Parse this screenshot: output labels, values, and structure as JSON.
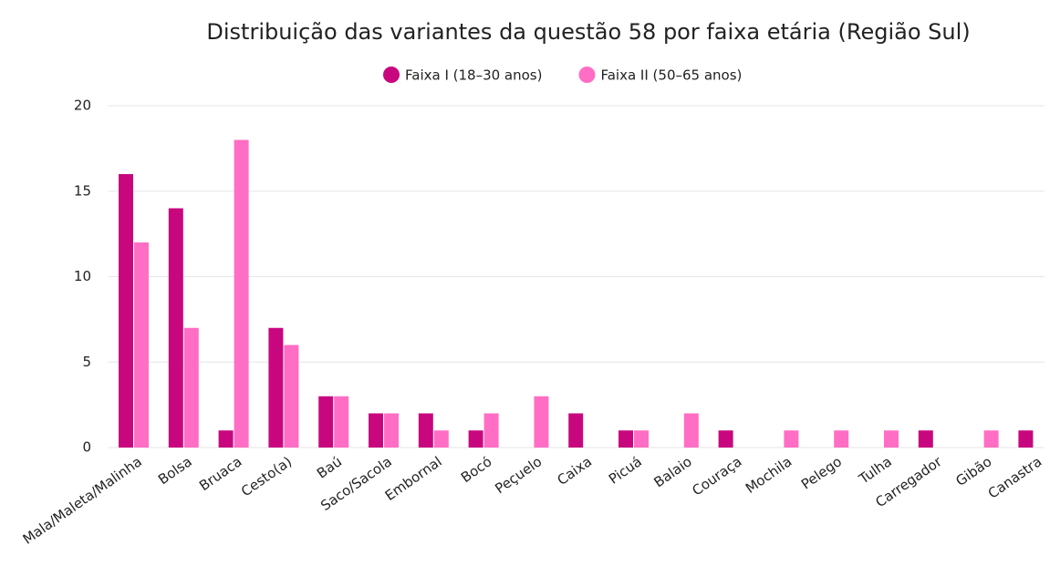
{
  "chart_data": {
    "type": "bar",
    "title": "Distribuição das variantes da questão 58 por faixa etária (Região Sul)",
    "categories": [
      "Mala/Maleta/Malinha",
      "Bolsa",
      "Bruaca",
      "Cesto(a)",
      "Baú",
      "Saco/Sacola",
      "Embornal",
      "Bocó",
      "Peçuelo",
      "Caixa",
      "Picuá",
      "Balaio",
      "Couraça",
      "Mochila",
      "Pelego",
      "Tulha",
      "Carregador",
      "Gibão",
      "Canastra"
    ],
    "series": [
      {
        "name": "Faixa I (18–30 anos)",
        "color": "#c8077f",
        "values": [
          16,
          14,
          1,
          7,
          3,
          2,
          2,
          1,
          0,
          2,
          1,
          0,
          1,
          0,
          0,
          0,
          1,
          0,
          1
        ]
      },
      {
        "name": "Faixa II (50–65 anos)",
        "color": "#ff6ec4",
        "values": [
          12,
          7,
          18,
          6,
          3,
          2,
          1,
          2,
          3,
          0,
          1,
          2,
          0,
          1,
          1,
          1,
          0,
          1,
          0
        ]
      }
    ],
    "ylim": [
      0,
      20
    ],
    "yticks": [
      0,
      5,
      10,
      15,
      20
    ],
    "grid": true,
    "legend": "top"
  }
}
